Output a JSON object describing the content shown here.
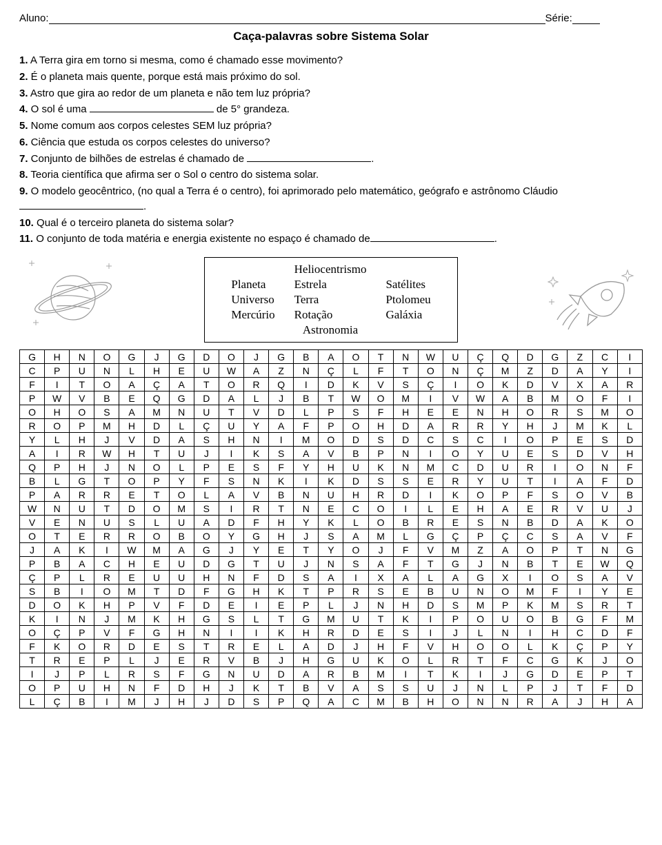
{
  "header": {
    "aluno_label": "Aluno:",
    "serie_label": "Série:"
  },
  "title": "Caça-palavras sobre Sistema Solar",
  "questions": [
    {
      "n": "1.",
      "t": " A Terra gira em torno si mesma, como é chamado esse movimento?"
    },
    {
      "n": "2.",
      "t": " É o planeta mais quente, porque está mais próximo do sol."
    },
    {
      "n": "3.",
      "t": " Astro que gira ao redor de um planeta e não tem luz própria?"
    },
    {
      "n": "4.",
      "t": " O sol é uma ",
      "blank": true,
      "after": " de 5° grandeza."
    },
    {
      "n": "5.",
      "t": " Nome comum aos corpos celestes SEM luz própria?"
    },
    {
      "n": "6.",
      "t": " Ciência que estuda os corpos celestes do universo?"
    },
    {
      "n": "7.",
      "t": " Conjunto de bilhões de estrelas é chamado de ",
      "blank": true,
      "after": "."
    },
    {
      "n": "8.",
      "t": " Teoria científica que afirma ser o Sol o centro do sistema solar."
    },
    {
      "n": "9.",
      "t": " O modelo geocêntrico, (no qual a Terra é o centro), foi aprimorado pelo matemático, geógrafo e astrônomo Cláudio",
      "blank": true,
      "after": "."
    },
    {
      "n": "10.",
      "t": " Qual é o terceiro planeta do sistema solar?"
    },
    {
      "n": "11.",
      "t": " O conjunto de toda matéria e energia existente no espaço é chamado de",
      "blank": true,
      "after": "."
    }
  ],
  "wordbox": {
    "top": "Heliocentrismo",
    "rows": [
      [
        "Planeta",
        "Estrela",
        "Satélites"
      ],
      [
        "Universo",
        "Terra",
        "Ptolomeu"
      ],
      [
        "Mercúrio",
        "Rotação",
        "Galáxia"
      ]
    ],
    "bottom": "Astronomia"
  },
  "grid_cols": 25,
  "grid": [
    [
      "G",
      "H",
      "N",
      "O",
      "G",
      "J",
      "G",
      "D",
      "O",
      "J",
      "G",
      "B",
      "A",
      "O",
      "T",
      "N",
      "W",
      "U",
      "Ç",
      "Q",
      "D",
      "G",
      "Z",
      "C",
      "I"
    ],
    [
      "C",
      "P",
      "U",
      "N",
      "L",
      "H",
      "E",
      "U",
      "W",
      "A",
      "Z",
      "N",
      "Ç",
      "L",
      "F",
      "T",
      "O",
      "N",
      "Ç",
      "M",
      "Z",
      "D",
      "A",
      "Y",
      "I"
    ],
    [
      "F",
      "I",
      "T",
      "O",
      "A",
      "Ç",
      "A",
      "T",
      "O",
      "R",
      "Q",
      "I",
      "D",
      "K",
      "V",
      "S",
      "Ç",
      "I",
      "O",
      "K",
      "D",
      "V",
      "X",
      "A",
      "R"
    ],
    [
      "P",
      "W",
      "V",
      "B",
      "E",
      "Q",
      "G",
      "D",
      "A",
      "L",
      "J",
      "B",
      "T",
      "W",
      "O",
      "M",
      "I",
      "V",
      "W",
      "A",
      "B",
      "M",
      "O",
      "F",
      "I"
    ],
    [
      "O",
      "H",
      "O",
      "S",
      "A",
      "M",
      "N",
      "U",
      "T",
      "V",
      "D",
      "L",
      "P",
      "S",
      "F",
      "H",
      "E",
      "E",
      "N",
      "H",
      "O",
      "R",
      "S",
      "M",
      "O"
    ],
    [
      "R",
      "O",
      "P",
      "M",
      "H",
      "D",
      "L",
      "Ç",
      "U",
      "Y",
      "A",
      "F",
      "P",
      "O",
      "H",
      "D",
      "A",
      "R",
      "R",
      "Y",
      "H",
      "J",
      "M",
      "K",
      "L"
    ],
    [
      "Y",
      "L",
      "H",
      "J",
      "V",
      "D",
      "A",
      "S",
      "H",
      "N",
      "I",
      "M",
      "O",
      "D",
      "S",
      "D",
      "C",
      "S",
      "C",
      "I",
      "O",
      "P",
      "E",
      "S",
      "D"
    ],
    [
      "A",
      "I",
      "R",
      "W",
      "H",
      "T",
      "U",
      "J",
      "I",
      "K",
      "S",
      "A",
      "V",
      "B",
      "P",
      "N",
      "I",
      "O",
      "Y",
      "U",
      "E",
      "S",
      "D",
      "V",
      "H"
    ],
    [
      "Q",
      "P",
      "H",
      "J",
      "N",
      "O",
      "L",
      "P",
      "E",
      "S",
      "F",
      "Y",
      "H",
      "U",
      "K",
      "N",
      "M",
      "C",
      "D",
      "U",
      "R",
      "I",
      "O",
      "N",
      "F"
    ],
    [
      "B",
      "L",
      "G",
      "T",
      "O",
      "P",
      "Y",
      "F",
      "S",
      "N",
      "K",
      "I",
      "K",
      "D",
      "S",
      "S",
      "E",
      "R",
      "Y",
      "U",
      "T",
      "I",
      "A",
      "F",
      "D"
    ],
    [
      "P",
      "A",
      "R",
      "R",
      "E",
      "T",
      "O",
      "L",
      "A",
      "V",
      "B",
      "N",
      "U",
      "H",
      "R",
      "D",
      "I",
      "K",
      "O",
      "P",
      "F",
      "S",
      "O",
      "V",
      "B"
    ],
    [
      "W",
      "N",
      "U",
      "T",
      "D",
      "O",
      "M",
      "S",
      "I",
      "R",
      "T",
      "N",
      "E",
      "C",
      "O",
      "I",
      "L",
      "E",
      "H",
      "A",
      "E",
      "R",
      "V",
      "U",
      "J"
    ],
    [
      "V",
      "E",
      "N",
      "U",
      "S",
      "L",
      "U",
      "A",
      "D",
      "F",
      "H",
      "Y",
      "K",
      "L",
      "O",
      "B",
      "R",
      "E",
      "S",
      "N",
      "B",
      "D",
      "A",
      "K",
      "O"
    ],
    [
      "O",
      "T",
      "E",
      "R",
      "R",
      "O",
      "B",
      "O",
      "Y",
      "G",
      "H",
      "J",
      "S",
      "A",
      "M",
      "L",
      "G",
      "Ç",
      "P",
      "Ç",
      "C",
      "S",
      "A",
      "V",
      "F"
    ],
    [
      "J",
      "A",
      "K",
      "I",
      "W",
      "M",
      "A",
      "G",
      "J",
      "Y",
      "E",
      "T",
      "Y",
      "O",
      "J",
      "F",
      "V",
      "M",
      "Z",
      "A",
      "O",
      "P",
      "T",
      "N",
      "G"
    ],
    [
      "P",
      "B",
      "A",
      "C",
      "H",
      "E",
      "U",
      "D",
      "G",
      "T",
      "U",
      "J",
      "N",
      "S",
      "A",
      "F",
      "T",
      "G",
      "J",
      "N",
      "B",
      "T",
      "E",
      "W",
      "Q"
    ],
    [
      "Ç",
      "P",
      "L",
      "R",
      "E",
      "U",
      "U",
      "H",
      "N",
      "F",
      "D",
      "S",
      "A",
      "I",
      "X",
      "A",
      "L",
      "A",
      "G",
      "X",
      "I",
      "O",
      "S",
      "A",
      "V"
    ],
    [
      "S",
      "B",
      "I",
      "O",
      "M",
      "T",
      "D",
      "F",
      "G",
      "H",
      "K",
      "T",
      "P",
      "R",
      "S",
      "E",
      "B",
      "U",
      "N",
      "O",
      "M",
      "F",
      "I",
      "Y",
      "E"
    ],
    [
      "D",
      "O",
      "K",
      "H",
      "P",
      "V",
      "F",
      "D",
      "E",
      "I",
      "E",
      "P",
      "L",
      "J",
      "N",
      "H",
      "D",
      "S",
      "M",
      "P",
      "K",
      "M",
      "S",
      "R",
      "T"
    ],
    [
      "K",
      "I",
      "N",
      "J",
      "M",
      "K",
      "H",
      "G",
      "S",
      "L",
      "T",
      "G",
      "M",
      "U",
      "T",
      "K",
      "I",
      "P",
      "O",
      "U",
      "O",
      "B",
      "G",
      "F",
      "M"
    ],
    [
      "O",
      "Ç",
      "P",
      "V",
      "F",
      "G",
      "H",
      "N",
      "I",
      "I",
      "K",
      "H",
      "R",
      "D",
      "E",
      "S",
      "I",
      "J",
      "L",
      "N",
      "I",
      "H",
      "C",
      "D",
      "F"
    ],
    [
      "F",
      "K",
      "O",
      "R",
      "D",
      "E",
      "S",
      "T",
      "R",
      "E",
      "L",
      "A",
      "D",
      "J",
      "H",
      "F",
      "V",
      "H",
      "O",
      "O",
      "L",
      "K",
      "Ç",
      "P",
      "Y"
    ],
    [
      "T",
      "R",
      "E",
      "P",
      "L",
      "J",
      "E",
      "R",
      "V",
      "B",
      "J",
      "H",
      "G",
      "U",
      "K",
      "O",
      "L",
      "R",
      "T",
      "F",
      "C",
      "G",
      "K",
      "J",
      "O"
    ],
    [
      "I",
      "J",
      "P",
      "L",
      "R",
      "S",
      "F",
      "G",
      "N",
      "U",
      "D",
      "A",
      "R",
      "B",
      "M",
      "I",
      "T",
      "K",
      "I",
      "J",
      "G",
      "D",
      "E",
      "P",
      "T"
    ],
    [
      "O",
      "P",
      "U",
      "H",
      "N",
      "F",
      "D",
      "H",
      "J",
      "K",
      "T",
      "B",
      "V",
      "A",
      "S",
      "S",
      "U",
      "J",
      "N",
      "L",
      "P",
      "J",
      "T",
      "F",
      "D"
    ],
    [
      "L",
      "Ç",
      "B",
      "I",
      "M",
      "J",
      "H",
      "J",
      "D",
      "S",
      "P",
      "Q",
      "A",
      "C",
      "M",
      "B",
      "H",
      "O",
      "N",
      "N",
      "R",
      "A",
      "J",
      "H",
      "A"
    ]
  ],
  "colors": {
    "line": "#000000",
    "bg": "#ffffff",
    "text": "#000000"
  }
}
